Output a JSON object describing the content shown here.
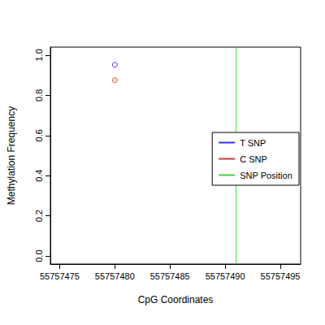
{
  "chart_data": {
    "type": "scatter",
    "x_label": "CpG Coordinates",
    "y_label": "Methylation Frequency",
    "series": [
      {
        "name": "T SNP",
        "type": "scatter",
        "color": "#0000ff",
        "marker": "open_circle",
        "x": [
          55757480
        ],
        "values": [
          0.952
        ]
      },
      {
        "name": "C SNP",
        "type": "scatter",
        "color": "#dd0000",
        "marker": "open_circle",
        "x": [
          55757480
        ],
        "values": [
          0.875
        ]
      },
      {
        "name": "SNP Position",
        "type": "vline",
        "color": "#33dd33",
        "line_style": "solid",
        "x": [
          55757491
        ]
      }
    ],
    "xlim": [
      55757474.16,
      55757496.84
    ],
    "xticks": [
      55757475,
      55757480,
      55757485,
      55757490,
      55757495
    ],
    "ylim": [
      -0.04,
      1.04
    ],
    "yticks": [
      {
        "value": 0,
        "label": "0.0"
      },
      {
        "value": 0.2,
        "label": "0.2"
      },
      {
        "value": 0.4,
        "label": "0.4"
      },
      {
        "value": 0.6,
        "label": "0.6"
      },
      {
        "value": 0.8,
        "label": "0.8"
      },
      {
        "value": 1,
        "label": "1.0"
      }
    ],
    "grid": false,
    "legend": "right"
  }
}
